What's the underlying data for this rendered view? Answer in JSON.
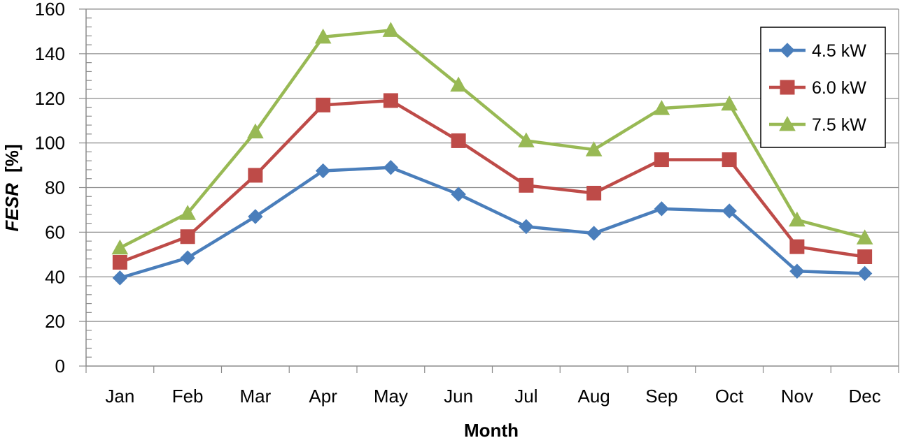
{
  "chart_data": {
    "type": "line",
    "categories": [
      "Jan",
      "Feb",
      "Mar",
      "Apr",
      "May",
      "Jun",
      "Jul",
      "Aug",
      "Sep",
      "Oct",
      "Nov",
      "Dec"
    ],
    "series": [
      {
        "name": "4.5 kW",
        "color": "#4a7ebb",
        "marker": "diamond",
        "values": [
          39.5,
          48.5,
          67,
          87.5,
          89,
          77,
          62.5,
          59.5,
          70.5,
          69.5,
          42.5,
          41.5
        ]
      },
      {
        "name": "6.0 kW",
        "color": "#be4b48",
        "marker": "square",
        "values": [
          46.5,
          58,
          85.5,
          117,
          119,
          101,
          81,
          77.5,
          92.5,
          92.5,
          53.5,
          49
        ]
      },
      {
        "name": "7.5 kW",
        "color": "#98b954",
        "marker": "triangle",
        "values": [
          53,
          68.5,
          105,
          147.5,
          150.5,
          126,
          101,
          97,
          115.5,
          117.5,
          65.5,
          57.5
        ]
      }
    ],
    "xlabel": "Month",
    "ylabel_italic": "FESR",
    "ylabel_unit": "[%]",
    "ylim": [
      0,
      160
    ],
    "yticks": [
      "0",
      "20",
      "40",
      "60",
      "80",
      "100",
      "120",
      "140",
      "160"
    ],
    "grid": true,
    "legend_position": "top-right"
  }
}
